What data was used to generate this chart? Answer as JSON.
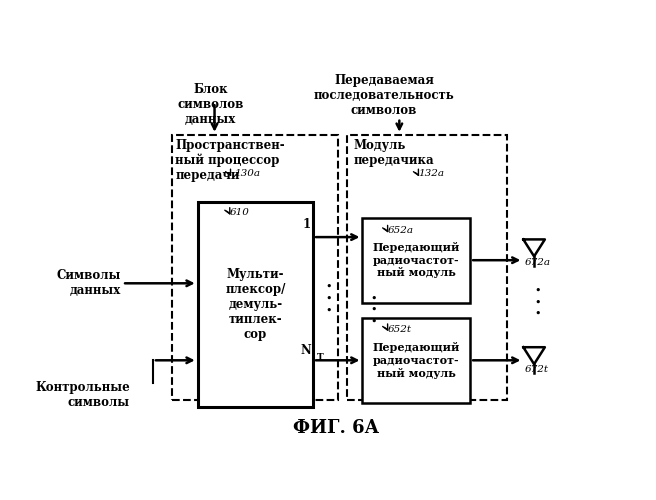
{
  "title": "ФИГ. 6А",
  "title_fontsize": 13,
  "background_color": "#ffffff",
  "top_label1": "Блок\nсимволов\nданных",
  "top_label2": "Передаваемая\nпоследовательность\nсимволов",
  "left_label1": "Символы\nданных",
  "left_label2": "Контрольные\nсимволы",
  "label_130a": "130a",
  "label_132a": "132a",
  "label_610": "610",
  "label_652a": "652a",
  "label_652t": "652t",
  "label_672a": "672a",
  "label_672t": "672t",
  "box1_label": "Пространствен-\nный процессор\nпередачи",
  "box2_label": "Мульти-\nплексор/\nдемуль-\nтиплек-\nсор",
  "box3_label": "Модуль\nпередачика",
  "box4_label": "Передающий\nрадиочастот-\nный модуль",
  "box5_label": "Передающий\nрадиочастот-\nный модуль",
  "port1_label": "1",
  "portN_label": "N"
}
